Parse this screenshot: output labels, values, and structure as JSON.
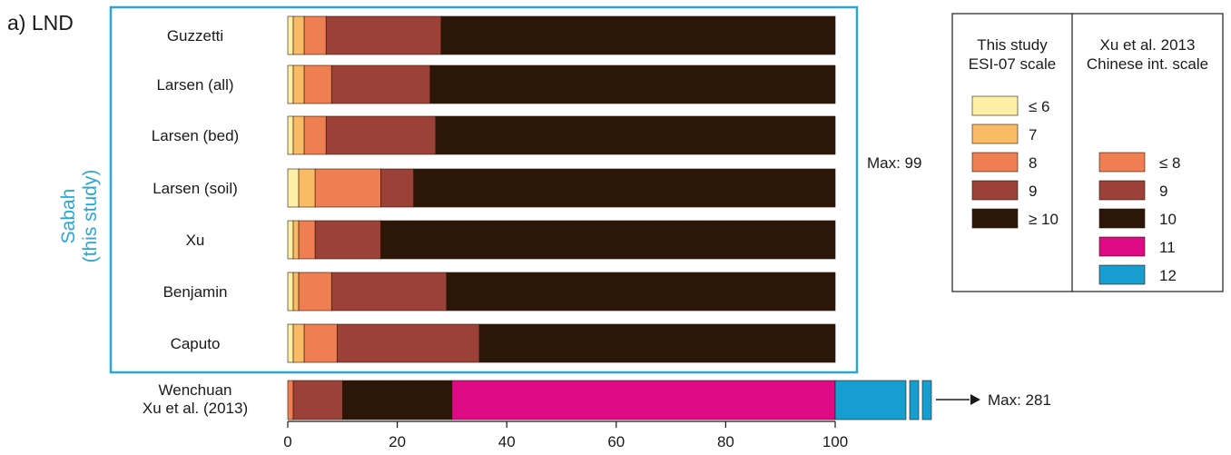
{
  "chart_data": {
    "type": "bar",
    "stacked": true,
    "orientation": "horizontal",
    "panel_label": "a) LND",
    "group_label": [
      "Sabah",
      "(this study)"
    ],
    "xlim": [
      0,
      100
    ],
    "xticks": [
      0,
      20,
      40,
      60,
      80,
      100
    ],
    "categories": [
      "Guzzetti",
      "Larsen (all)",
      "Larsen (bed)",
      "Larsen (soil)",
      "Xu",
      "Benjamin",
      "Caputo"
    ],
    "series": [
      {
        "name": "≤ 6",
        "color": "#fdf0a6",
        "values": [
          1,
          1,
          1,
          2,
          1,
          1,
          1
        ]
      },
      {
        "name": "7",
        "color": "#f9bb66",
        "values": [
          2,
          2,
          2,
          3,
          1,
          1,
          2
        ]
      },
      {
        "name": "8",
        "color": "#ef7f52",
        "values": [
          4,
          5,
          4,
          12,
          3,
          6,
          6
        ]
      },
      {
        "name": "9",
        "color": "#9b4137",
        "values": [
          21,
          18,
          20,
          6,
          12,
          21,
          26
        ]
      },
      {
        "name": "≥ 10",
        "color": "#2b1608",
        "values": [
          72,
          74,
          73,
          77,
          83,
          71,
          65
        ]
      }
    ],
    "max_annotation": "Max: 99",
    "wenchuan": {
      "label": [
        "Wenchuan",
        "Xu et al. (2013)"
      ],
      "segments": [
        {
          "name": "≤ 8",
          "color": "#ef7f52",
          "value": 1
        },
        {
          "name": "9",
          "color": "#9b4137",
          "value": 9
        },
        {
          "name": "10",
          "color": "#2b1608",
          "value": 20
        },
        {
          "name": "11",
          "color": "#de0a85",
          "value": 70
        },
        {
          "name": "12",
          "color": "#179ed1",
          "value": 181
        }
      ],
      "max_annotation": "Max: 281"
    },
    "legend": {
      "left_title": [
        "This study",
        "ESI-07 scale"
      ],
      "left_items": [
        {
          "label": "≤ 6",
          "color": "#fdf0a6"
        },
        {
          "label": "7",
          "color": "#f9bb66"
        },
        {
          "label": "8",
          "color": "#ef7f52"
        },
        {
          "label": "9",
          "color": "#9b4137"
        },
        {
          "label": "≥ 10",
          "color": "#2b1608"
        }
      ],
      "right_title": [
        "Xu et al. 2013",
        "Chinese int. scale"
      ],
      "right_items": [
        {
          "label": "≤ 8",
          "color": "#ef7f52"
        },
        {
          "label": "9",
          "color": "#9b4137"
        },
        {
          "label": "10",
          "color": "#2b1608"
        },
        {
          "label": "11",
          "color": "#de0a85"
        },
        {
          "label": "12",
          "color": "#179ed1"
        }
      ]
    }
  }
}
